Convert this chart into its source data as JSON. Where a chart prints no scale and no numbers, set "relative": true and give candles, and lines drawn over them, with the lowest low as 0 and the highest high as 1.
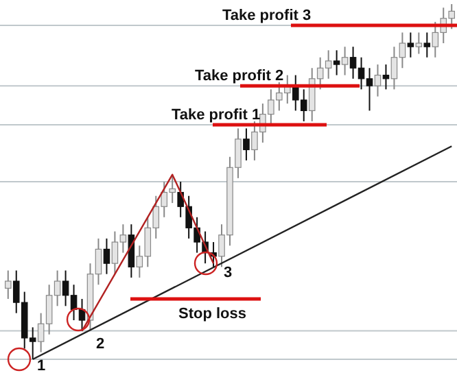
{
  "chart_data": {
    "type": "candlestick",
    "relative": true,
    "categories": [
      null,
      null,
      null,
      null,
      null,
      null,
      null,
      null,
      null,
      null,
      null,
      null,
      null,
      null,
      null,
      null,
      null,
      null,
      null,
      null,
      null,
      null,
      null,
      null,
      null,
      null,
      null,
      null,
      null,
      null,
      null,
      null,
      null,
      null,
      null,
      null,
      null,
      null,
      null,
      null,
      null,
      null,
      null,
      null,
      null,
      null,
      null,
      null,
      null,
      null,
      null,
      null,
      null,
      null,
      null
    ],
    "ohlc": [
      [
        0.2,
        0.25,
        0.17,
        0.22
      ],
      [
        0.22,
        0.25,
        0.13,
        0.16
      ],
      [
        0.16,
        0.19,
        0.03,
        0.06
      ],
      [
        0.06,
        0.09,
        0,
        0.05
      ],
      [
        0.05,
        0.13,
        0.02,
        0.1
      ],
      [
        0.1,
        0.21,
        0.07,
        0.18
      ],
      [
        0.18,
        0.25,
        0.15,
        0.22
      ],
      [
        0.22,
        0.25,
        0.15,
        0.18
      ],
      [
        0.18,
        0.21,
        0.11,
        0.14
      ],
      [
        0.14,
        0.17,
        0.08,
        0.11
      ],
      [
        0.11,
        0.27,
        0.08,
        0.24
      ],
      [
        0.24,
        0.34,
        0.21,
        0.31
      ],
      [
        0.31,
        0.34,
        0.24,
        0.27
      ],
      [
        0.27,
        0.36,
        0.24,
        0.33
      ],
      [
        0.33,
        0.38,
        0.3,
        0.35
      ],
      [
        0.35,
        0.38,
        0.23,
        0.26
      ],
      [
        0.26,
        0.32,
        0.23,
        0.29
      ],
      [
        0.29,
        0.4,
        0.26,
        0.37
      ],
      [
        0.37,
        0.46,
        0.34,
        0.43
      ],
      [
        0.43,
        0.5,
        0.4,
        0.47
      ],
      [
        0.47,
        0.52,
        0.44,
        0.48
      ],
      [
        0.47,
        0.5,
        0.4,
        0.43
      ],
      [
        0.43,
        0.46,
        0.34,
        0.37
      ],
      [
        0.37,
        0.4,
        0.3,
        0.33
      ],
      [
        0.33,
        0.36,
        0.27,
        0.3
      ],
      [
        0.3,
        0.33,
        0.26,
        0.29
      ],
      [
        0.29,
        0.38,
        0.26,
        0.35
      ],
      [
        0.35,
        0.57,
        0.32,
        0.54
      ],
      [
        0.54,
        0.65,
        0.51,
        0.62
      ],
      [
        0.62,
        0.65,
        0.56,
        0.59
      ],
      [
        0.59,
        0.67,
        0.56,
        0.64
      ],
      [
        0.64,
        0.72,
        0.61,
        0.69
      ],
      [
        0.69,
        0.76,
        0.66,
        0.73
      ],
      [
        0.73,
        0.78,
        0.7,
        0.75
      ],
      [
        0.75,
        0.8,
        0.72,
        0.77
      ],
      [
        0.77,
        0.8,
        0.7,
        0.73
      ],
      [
        0.73,
        0.76,
        0.67,
        0.7
      ],
      [
        0.7,
        0.82,
        0.67,
        0.79
      ],
      [
        0.79,
        0.85,
        0.76,
        0.82
      ],
      [
        0.82,
        0.87,
        0.79,
        0.84
      ],
      [
        0.84,
        0.87,
        0.8,
        0.83
      ],
      [
        0.83,
        0.88,
        0.8,
        0.85
      ],
      [
        0.85,
        0.88,
        0.79,
        0.82
      ],
      [
        0.82,
        0.85,
        0.76,
        0.79
      ],
      [
        0.79,
        0.82,
        0.7,
        0.77
      ],
      [
        0.77,
        0.83,
        0.74,
        0.8
      ],
      [
        0.8,
        0.83,
        0.76,
        0.79
      ],
      [
        0.79,
        0.88,
        0.76,
        0.85
      ],
      [
        0.85,
        0.92,
        0.82,
        0.89
      ],
      [
        0.89,
        0.92,
        0.85,
        0.88
      ],
      [
        0.88,
        0.92,
        0.86,
        0.89
      ],
      [
        0.89,
        0.92,
        0.85,
        0.88
      ],
      [
        0.88,
        0.95,
        0.85,
        0.92
      ],
      [
        0.92,
        0.99,
        0.89,
        0.96
      ],
      [
        0.96,
        1.0,
        0.93,
        0.98
      ]
    ],
    "series": [
      {
        "type": "line",
        "color": "#222222",
        "values": [
          null,
          null,
          null,
          0,
          null,
          null,
          null,
          null,
          null,
          null,
          null,
          null,
          null,
          null,
          null,
          null,
          null,
          null,
          null,
          null,
          null,
          null,
          null,
          null,
          null,
          null,
          null,
          null,
          null,
          null,
          null,
          null,
          null,
          null,
          null,
          null,
          null,
          null,
          null,
          null,
          null,
          null,
          null,
          null,
          null,
          null,
          null,
          null,
          null,
          null,
          null,
          null,
          null,
          null,
          0.6
        ]
      },
      {
        "type": "line",
        "color": "#b22222",
        "values": [
          null,
          null,
          null,
          null,
          null,
          null,
          null,
          null,
          null,
          0.08,
          null,
          null,
          null,
          null,
          null,
          null,
          null,
          null,
          null,
          null,
          0.52,
          null,
          null,
          null,
          null,
          0.27,
          null,
          null,
          null,
          null,
          null,
          null,
          null,
          null,
          null,
          null,
          null,
          null,
          null,
          null,
          null,
          null,
          null,
          null,
          null,
          null,
          null,
          null,
          null,
          null,
          null,
          null,
          null,
          null,
          null
        ]
      }
    ],
    "ref_lines": [
      {
        "axis": "y",
        "value": 0.94,
        "color": "#c0c8cc"
      },
      {
        "axis": "y",
        "value": 0.77,
        "color": "#c0c8cc"
      },
      {
        "axis": "y",
        "value": 0.66,
        "color": "#c0c8cc"
      },
      {
        "axis": "y",
        "value": 0.5,
        "color": "#c0c8cc"
      },
      {
        "axis": "y",
        "value": 0.08,
        "color": "#c0c8cc"
      },
      {
        "axis": "y",
        "value": 0,
        "color": "#c0c8cc"
      },
      {
        "axis": "y",
        "value": 0.94,
        "color": "#dd1111",
        "label": "Take profit 3"
      },
      {
        "axis": "y",
        "value": 0.77,
        "color": "#dd1111",
        "label": "Take profit 2"
      },
      {
        "axis": "y",
        "value": 0.66,
        "color": "#dd1111",
        "label": "Take profit 1"
      },
      {
        "axis": "y",
        "value": 0.17,
        "color": "#dd1111",
        "label": "Stop loss"
      }
    ],
    "annotations": [
      "1",
      "2",
      "3"
    ]
  }
}
